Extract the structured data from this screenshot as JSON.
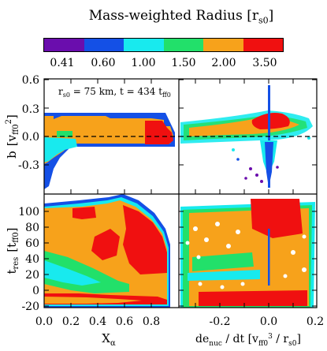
{
  "chart_data": {
    "type": "heatmap",
    "title": "Mass-weighted Radius [r",
    "title_sub": "s0",
    "title_end": "]",
    "colorbar": {
      "colors": [
        "#6a0dad",
        "#1450e6",
        "#18eaee",
        "#22e06a",
        "#f7a21b",
        "#f01010"
      ],
      "tick_labels": [
        "0.41",
        "0.60",
        "1.00",
        "1.50",
        "2.00",
        "3.50"
      ]
    },
    "annotation": {
      "pre": "r",
      "pre_sub": "s0",
      "mid": " = 75 km, t = 434 t",
      "post_sub": "ff0"
    },
    "panels": [
      {
        "id": "b-vs-xalpha",
        "x": "X_alpha",
        "y": "b",
        "xlim": [
          0.0,
          1.0
        ],
        "ylim": [
          -0.5,
          0.6
        ]
      },
      {
        "id": "b-vs-denuc",
        "x": "de_nuc/dt",
        "y": "b",
        "xlim": [
          -0.35,
          0.2
        ],
        "ylim": [
          -0.5,
          0.6
        ]
      },
      {
        "id": "tres-vs-xalpha",
        "x": "X_alpha",
        "y": "t_res",
        "xlim": [
          0.0,
          1.0
        ],
        "ylim": [
          -25,
          120
        ]
      },
      {
        "id": "tres-vs-denuc",
        "x": "de_nuc/dt",
        "y": "t_res",
        "xlim": [
          -0.35,
          0.2
        ],
        "ylim": [
          -25,
          120
        ]
      }
    ],
    "y_ticks_top": [
      "0.6",
      "0.3",
      "0.0",
      "-0.3"
    ],
    "y_ticks_bottom": [
      "100",
      "80",
      "60",
      "40",
      "20",
      "0",
      "-20"
    ],
    "x_ticks_left": [
      "0.0",
      "0.2",
      "0.4",
      "0.6",
      "0.8"
    ],
    "x_ticks_right": [
      "-0.2",
      "0.0",
      "0.2"
    ],
    "ylabel_top": {
      "main": "b",
      "unit_pre": "[v",
      "unit_sub": "ff0",
      "unit_sup": "2",
      "unit_post": "]"
    },
    "ylabel_bottom": {
      "main": "t",
      "main_sub": "res",
      "unit_pre": "[t",
      "unit_sub": "ff0",
      "unit_post": "]"
    },
    "xlabel_left": {
      "main": "X",
      "main_sub": "α"
    },
    "xlabel_right": {
      "main": "de",
      "main_sub": "nuc",
      "mid": " / dt   [v",
      "sub1": "ff0",
      "sup1": "3",
      "mid2": " / r",
      "sub2": "s0",
      "post": "]"
    }
  }
}
